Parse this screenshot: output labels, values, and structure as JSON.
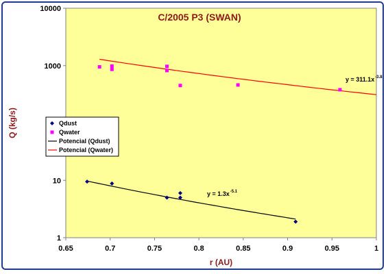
{
  "chart_data": {
    "type": "scatter",
    "title": "C/2005 P3 (SWAN)",
    "xlabel": "r (AU)",
    "ylabel": "Q (kg/s)",
    "xlim": [
      0.65,
      1.0
    ],
    "ylim": [
      1,
      10000
    ],
    "yscale": "log",
    "grid": false,
    "legend_position": "left",
    "x_ticks": [
      "0.65",
      "0.7",
      "0.75",
      "0.8",
      "0.85",
      "0.9",
      "0.95",
      "1"
    ],
    "y_ticks": [
      "1",
      "10",
      "100",
      "1000",
      "10000"
    ],
    "series": [
      {
        "name": "Qdust",
        "kind": "points",
        "color": "#000080",
        "marker": "diamond",
        "points": [
          [
            0.674,
            9.5
          ],
          [
            0.702,
            8.8
          ],
          [
            0.764,
            5.0
          ],
          [
            0.779,
            6.0
          ],
          [
            0.779,
            5.0
          ],
          [
            0.909,
            1.9
          ]
        ]
      },
      {
        "name": "Qwater",
        "kind": "points",
        "color": "#ff00ff",
        "marker": "square",
        "points": [
          [
            0.688,
            950
          ],
          [
            0.702,
            980
          ],
          [
            0.702,
            860
          ],
          [
            0.764,
            970
          ],
          [
            0.764,
            820
          ],
          [
            0.779,
            450
          ],
          [
            0.844,
            460
          ],
          [
            0.959,
            380
          ]
        ]
      },
      {
        "name": "Potencial (Qdust)",
        "kind": "trendline",
        "color": "#000000",
        "coefficient": 1.3,
        "exponent": -5.1,
        "x_range": [
          0.674,
          0.909
        ],
        "label": {
          "base": "y = 1.3x",
          "exponent": "-5.1"
        }
      },
      {
        "name": "Potencial (Qwater)",
        "kind": "trendline",
        "color": "#ff0000",
        "coefficient": 311.1,
        "exponent": -3.8,
        "x_range": [
          0.688,
          1.0
        ],
        "label": {
          "base": "y = 311.1x",
          "exponent": "-3.8"
        }
      }
    ],
    "plot_background": "#ffff99"
  }
}
